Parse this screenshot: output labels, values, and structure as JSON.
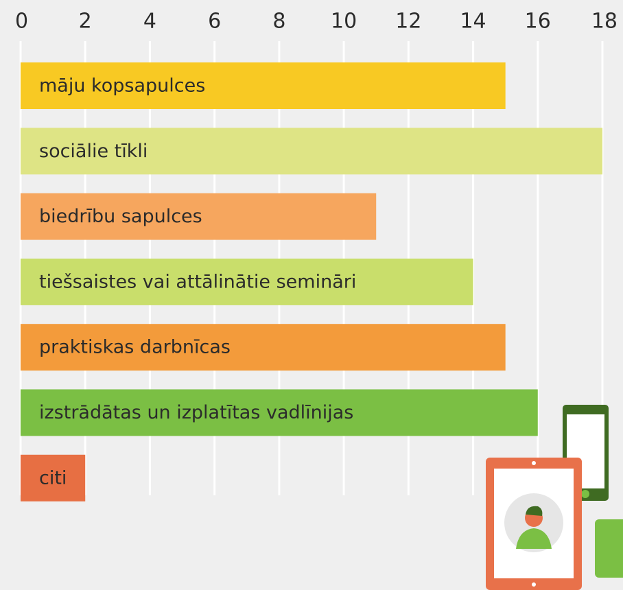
{
  "chart_data": {
    "type": "bar",
    "orientation": "horizontal",
    "categories": [
      "māju kopsapulces",
      "sociālie tīkli",
      "biedrību sapulces",
      "tiešsaistes vai attālinātie semināri",
      "praktiskas darbnīcas",
      "izstrādātas un izplatītas vadlīnijas",
      "citi"
    ],
    "values": [
      15,
      18,
      11,
      14,
      15,
      16,
      2
    ],
    "colors": [
      "#f8c923",
      "#dee485",
      "#f6a65e",
      "#c9de6b",
      "#f39b3b",
      "#7bbf44",
      "#e76f43"
    ],
    "xlim": [
      0,
      18
    ],
    "xticks": [
      0,
      2,
      4,
      6,
      8,
      10,
      12,
      14,
      16,
      18
    ],
    "grid": true
  }
}
